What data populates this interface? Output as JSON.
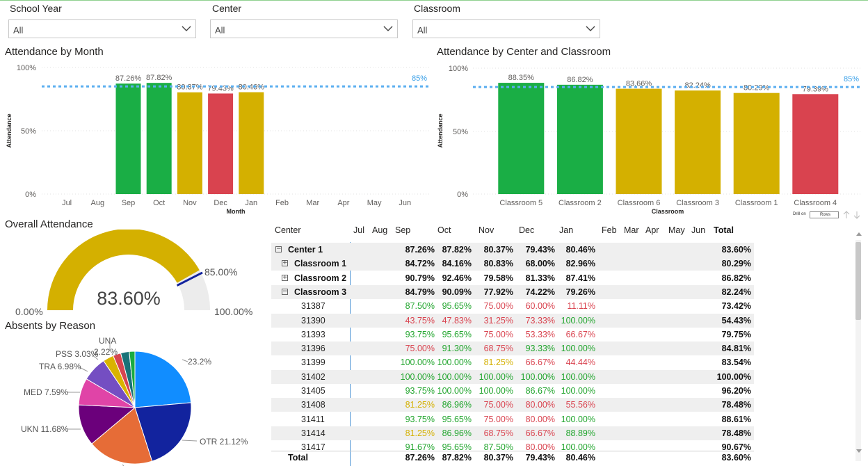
{
  "slicers": [
    {
      "label": "School Year",
      "value": "All"
    },
    {
      "label": "Center",
      "value": "All"
    },
    {
      "label": "Classroom",
      "value": "All"
    }
  ],
  "month_chart": {
    "title": "Attendance by Month",
    "ylabel": "Attendance",
    "xlabel": "Month",
    "yticks": [
      "100%",
      "50%",
      "0%"
    ],
    "target_label": "85%"
  },
  "classroom_chart": {
    "title": "Attendance by Center and Classroom",
    "ylabel": "Attendance",
    "xlabel": "Classroom",
    "yticks": [
      "100%",
      "50%",
      "0%"
    ],
    "target_label": "85%",
    "drill_label": "Drill on",
    "drill_value": "Rows"
  },
  "gauge": {
    "title": "Overall Attendance",
    "value_label": "83.60%",
    "min_label": "0.00%",
    "max_label": "100.00%",
    "target_label": "85.00%",
    "color": "#d4b000"
  },
  "pie": {
    "title": "Absents by Reason",
    "labels": [
      "23.2%",
      "OTR 21.12%",
      "UKN 11.68%",
      "MED 7.59%",
      "TRA 6.98%",
      "PSS 3.03%",
      "UNA",
      "2.22%"
    ]
  },
  "chart_data": [
    {
      "type": "bar",
      "title": "Attendance by Month",
      "xlabel": "Month",
      "ylabel": "Attendance",
      "ylim": [
        0,
        100
      ],
      "target": 85,
      "categories": [
        "Jul",
        "Aug",
        "Sep",
        "Oct",
        "Nov",
        "Dec",
        "Jan",
        "Feb",
        "Mar",
        "Apr",
        "May",
        "Jun"
      ],
      "values": [
        null,
        null,
        87.26,
        87.82,
        80.37,
        79.43,
        80.46,
        null,
        null,
        null,
        null,
        null
      ],
      "value_labels": [
        "",
        "",
        "87.26%",
        "87.82%",
        "80.37%",
        "79.43%",
        "80.46%",
        "",
        "",
        "",
        "",
        ""
      ],
      "colors": [
        "",
        "",
        "#1aae45",
        "#1aae45",
        "#d4b000",
        "#d9434f",
        "#d4b000",
        "",
        "",
        "",
        "",
        ""
      ]
    },
    {
      "type": "bar",
      "title": "Attendance by Center and Classroom",
      "xlabel": "Classroom",
      "ylabel": "Attendance",
      "ylim": [
        0,
        100
      ],
      "target": 85,
      "categories": [
        "Classroom 5",
        "Classroom 2",
        "Classroom 6",
        "Classroom 3",
        "Classroom 1",
        "Classroom 4"
      ],
      "values": [
        88.35,
        86.82,
        83.66,
        82.24,
        80.29,
        79.39
      ],
      "value_labels": [
        "88.35%",
        "86.82%",
        "83.66%",
        "82.24%",
        "80.29%",
        "79.39%"
      ],
      "colors": [
        "#1aae45",
        "#1aae45",
        "#d4b000",
        "#d4b000",
        "#d4b000",
        "#d9434f"
      ]
    },
    {
      "type": "pie",
      "title": "Absents by Reason",
      "categories": [
        "",
        "OTR",
        "",
        "UKN",
        "MED",
        "TRA",
        "PSS",
        "UNA",
        "",
        ""
      ],
      "values": [
        23.2,
        21.12,
        18.5,
        11.68,
        7.59,
        6.98,
        3.03,
        2.22,
        2.4,
        1.6
      ],
      "colors": [
        "#118dff",
        "#12239e",
        "#e66c37",
        "#6b007b",
        "#e044a7",
        "#744ec2",
        "#d9b300",
        "#d64550",
        "#197278",
        "#1aab40"
      ]
    }
  ],
  "matrix": {
    "headers": [
      "Center",
      "Jul",
      "Aug",
      "Sep",
      "Oct",
      "Nov",
      "Dec",
      "Jan",
      "Feb",
      "Mar",
      "Apr",
      "May",
      "Jun",
      "Total"
    ],
    "rows": [
      {
        "label": "Center 1",
        "level": 0,
        "exp": "−",
        "bold": true,
        "band": true,
        "vals": [
          "87.26%",
          "87.82%",
          "80.37%",
          "79.43%",
          "80.46%"
        ],
        "cls": [
          "bold",
          "bold",
          "bold",
          "bold",
          "bold"
        ],
        "total": "83.60%"
      },
      {
        "label": "Classroom 1",
        "level": 1,
        "exp": "+",
        "bold": true,
        "band": true,
        "vals": [
          "84.72%",
          "84.16%",
          "80.83%",
          "68.00%",
          "82.96%"
        ],
        "cls": [
          "bold",
          "bold",
          "bold",
          "bold",
          "bold"
        ],
        "total": "80.29%"
      },
      {
        "label": "Classroom 2",
        "level": 1,
        "exp": "+",
        "bold": true,
        "band": false,
        "vals": [
          "90.79%",
          "92.46%",
          "79.58%",
          "81.33%",
          "87.41%"
        ],
        "cls": [
          "bold",
          "bold",
          "bold",
          "bold",
          "bold"
        ],
        "total": "86.82%"
      },
      {
        "label": "Classroom 3",
        "level": 1,
        "exp": "−",
        "bold": true,
        "band": true,
        "vals": [
          "84.79%",
          "90.09%",
          "77.92%",
          "74.22%",
          "79.26%"
        ],
        "cls": [
          "bold",
          "bold",
          "bold",
          "bold",
          "bold"
        ],
        "total": "82.24%"
      },
      {
        "label": "31387",
        "level": 2,
        "exp": "",
        "bold": false,
        "band": false,
        "vals": [
          "87.50%",
          "95.65%",
          "75.00%",
          "60.00%",
          "11.11%"
        ],
        "cls": [
          "g",
          "g",
          "r",
          "r",
          "r"
        ],
        "total": "73.42%"
      },
      {
        "label": "31390",
        "level": 2,
        "exp": "",
        "bold": false,
        "band": true,
        "vals": [
          "43.75%",
          "47.83%",
          "31.25%",
          "73.33%",
          "100.00%"
        ],
        "cls": [
          "r",
          "r",
          "r",
          "r",
          "g"
        ],
        "total": "54.43%"
      },
      {
        "label": "31393",
        "level": 2,
        "exp": "",
        "bold": false,
        "band": false,
        "vals": [
          "93.75%",
          "95.65%",
          "75.00%",
          "53.33%",
          "66.67%"
        ],
        "cls": [
          "g",
          "g",
          "r",
          "r",
          "r"
        ],
        "total": "79.75%"
      },
      {
        "label": "31396",
        "level": 2,
        "exp": "",
        "bold": false,
        "band": true,
        "vals": [
          "75.00%",
          "91.30%",
          "68.75%",
          "93.33%",
          "100.00%"
        ],
        "cls": [
          "r",
          "g",
          "r",
          "g",
          "g"
        ],
        "total": "84.81%"
      },
      {
        "label": "31399",
        "level": 2,
        "exp": "",
        "bold": false,
        "band": false,
        "vals": [
          "100.00%",
          "100.00%",
          "81.25%",
          "66.67%",
          "44.44%"
        ],
        "cls": [
          "g",
          "g",
          "y",
          "r",
          "r"
        ],
        "total": "83.54%"
      },
      {
        "label": "31402",
        "level": 2,
        "exp": "",
        "bold": false,
        "band": true,
        "vals": [
          "100.00%",
          "100.00%",
          "100.00%",
          "100.00%",
          "100.00%"
        ],
        "cls": [
          "g",
          "g",
          "g",
          "g",
          "g"
        ],
        "total": "100.00%"
      },
      {
        "label": "31405",
        "level": 2,
        "exp": "",
        "bold": false,
        "band": false,
        "vals": [
          "93.75%",
          "100.00%",
          "100.00%",
          "86.67%",
          "100.00%"
        ],
        "cls": [
          "g",
          "g",
          "g",
          "g",
          "g"
        ],
        "total": "96.20%"
      },
      {
        "label": "31408",
        "level": 2,
        "exp": "",
        "bold": false,
        "band": true,
        "vals": [
          "81.25%",
          "86.96%",
          "75.00%",
          "80.00%",
          "55.56%"
        ],
        "cls": [
          "y",
          "g",
          "r",
          "r",
          "r"
        ],
        "total": "78.48%"
      },
      {
        "label": "31411",
        "level": 2,
        "exp": "",
        "bold": false,
        "band": false,
        "vals": [
          "93.75%",
          "95.65%",
          "75.00%",
          "80.00%",
          "100.00%"
        ],
        "cls": [
          "g",
          "g",
          "r",
          "r",
          "g"
        ],
        "total": "88.61%"
      },
      {
        "label": "31414",
        "level": 2,
        "exp": "",
        "bold": false,
        "band": true,
        "vals": [
          "81.25%",
          "86.96%",
          "68.75%",
          "66.67%",
          "88.89%"
        ],
        "cls": [
          "y",
          "g",
          "r",
          "r",
          "g"
        ],
        "total": "78.48%"
      },
      {
        "label": "31417",
        "level": 2,
        "exp": "",
        "bold": false,
        "band": false,
        "vals": [
          "91.67%",
          "95.65%",
          "87.50%",
          "80.00%",
          "100.00%"
        ],
        "cls": [
          "g",
          "g",
          "g",
          "r",
          "g"
        ],
        "total": "90.67%"
      }
    ],
    "total_row": {
      "label": "Total",
      "vals": [
        "87.26%",
        "87.82%",
        "80.37%",
        "79.43%",
        "80.46%"
      ],
      "total": "83.60%"
    }
  }
}
